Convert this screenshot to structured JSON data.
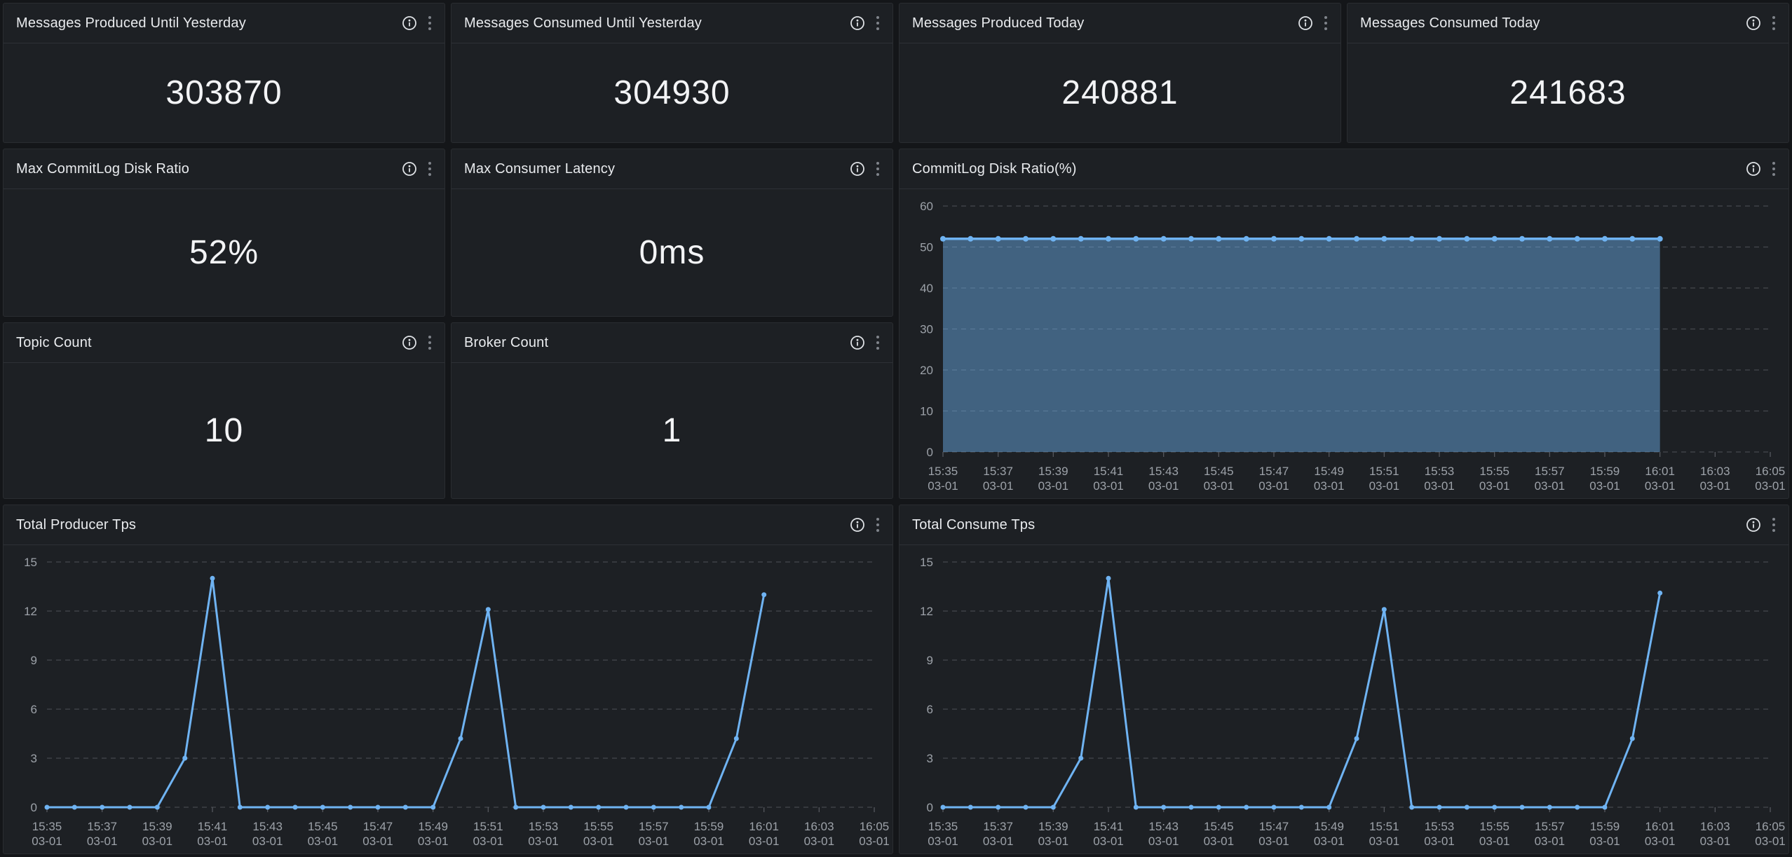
{
  "colors": {
    "page_background": "#141619",
    "panel_background": "#1D2024",
    "panel_border": "#2A2D31",
    "line_blue": "#6FB3F2",
    "axis_text": "#9DA2A9",
    "grid_line": "#45484E",
    "title_text": "#E9EBEE",
    "value_text": "#F3F4F6"
  },
  "icons": {
    "info": "circled-i-outline",
    "kebab": "vertical-ellipsis-three-dots"
  },
  "panels": [
    {
      "title": "Messages Produced Until Yesterday",
      "value": "303870"
    },
    {
      "title": "Messages Consumed Until Yesterday",
      "value": "304930"
    },
    {
      "title": "Messages Produced Today",
      "value": "240881"
    },
    {
      "title": "Messages Consumed Today",
      "value": "241683"
    },
    {
      "title": "Max CommitLog Disk Ratio",
      "value": "52%"
    },
    {
      "title": "Max Consumer Latency",
      "value": "0ms"
    },
    {
      "title": "Topic Count",
      "value": "10"
    },
    {
      "title": "Broker Count",
      "value": "1"
    },
    {
      "title": "CommitLog Disk Ratio(%)"
    },
    {
      "title": "Total Producer Tps"
    },
    {
      "title": "Total Consume Tps"
    }
  ],
  "chart_data": [
    {
      "type": "area",
      "title": "CommitLog Disk Ratio(%)",
      "x_slots": 31,
      "x_tick_every": 2,
      "x_tick_labels_time": [
        "15:35",
        "15:37",
        "15:39",
        "15:41",
        "15:43",
        "15:45",
        "15:47",
        "15:49",
        "15:51",
        "15:53",
        "15:55",
        "15:57",
        "15:59",
        "16:01",
        "16:03",
        "16:05"
      ],
      "x_tick_labels_date": "03-01",
      "x_data_start": "15:35",
      "x_data_end": "16:01",
      "values": [
        52,
        52,
        52,
        52,
        52,
        52,
        52,
        52,
        52,
        52,
        52,
        52,
        52,
        52,
        52,
        52,
        52,
        52,
        52,
        52,
        52,
        52,
        52,
        52,
        52,
        52,
        52
      ],
      "ylim": [
        0,
        60
      ],
      "yticks": [
        0,
        10,
        20,
        30,
        40,
        50,
        60
      ],
      "grid": "dashed",
      "legend": "none",
      "line_color": "#6FB3F2",
      "fill": true,
      "fill_opacity": 0.45,
      "line_width": 3.5,
      "marker_radius": 4
    },
    {
      "type": "line",
      "title": "Total Producer Tps",
      "x_slots": 31,
      "x_tick_every": 2,
      "x_tick_labels_time": [
        "15:35",
        "15:37",
        "15:39",
        "15:41",
        "15:43",
        "15:45",
        "15:47",
        "15:49",
        "15:51",
        "15:53",
        "15:55",
        "15:57",
        "15:59",
        "16:01",
        "16:03",
        "16:05"
      ],
      "x_tick_labels_date": "03-01",
      "x_data_start": "15:35",
      "x_data_end": "16:01",
      "values": [
        0,
        0,
        0,
        0,
        0,
        3,
        14,
        0,
        0,
        0,
        0,
        0,
        0,
        0,
        0,
        4.2,
        12.1,
        0,
        0,
        0,
        0,
        0,
        0,
        0,
        0,
        4.2,
        13
      ],
      "ylim": [
        0,
        15
      ],
      "yticks": [
        0,
        3,
        6,
        9,
        12,
        15
      ],
      "grid": "dashed",
      "legend": "none",
      "line_color": "#6FB3F2",
      "fill": false,
      "fill_opacity": 0,
      "line_width": 3,
      "marker_radius": 3.5
    },
    {
      "type": "line",
      "title": "Total Consume Tps",
      "x_slots": 31,
      "x_tick_every": 2,
      "x_tick_labels_time": [
        "15:35",
        "15:37",
        "15:39",
        "15:41",
        "15:43",
        "15:45",
        "15:47",
        "15:49",
        "15:51",
        "15:53",
        "15:55",
        "15:57",
        "15:59",
        "16:01",
        "16:03",
        "16:05"
      ],
      "x_tick_labels_date": "03-01",
      "x_data_start": "15:35",
      "x_data_end": "16:01",
      "values": [
        0,
        0,
        0,
        0,
        0,
        3,
        14,
        0,
        0,
        0,
        0,
        0,
        0,
        0,
        0,
        4.2,
        12.1,
        0,
        0,
        0,
        0,
        0,
        0,
        0,
        0,
        4.2,
        13.1
      ],
      "ylim": [
        0,
        15
      ],
      "yticks": [
        0,
        3,
        6,
        9,
        12,
        15
      ],
      "grid": "dashed",
      "legend": "none",
      "line_color": "#6FB3F2",
      "fill": false,
      "fill_opacity": 0,
      "line_width": 3,
      "marker_radius": 3.5
    }
  ]
}
